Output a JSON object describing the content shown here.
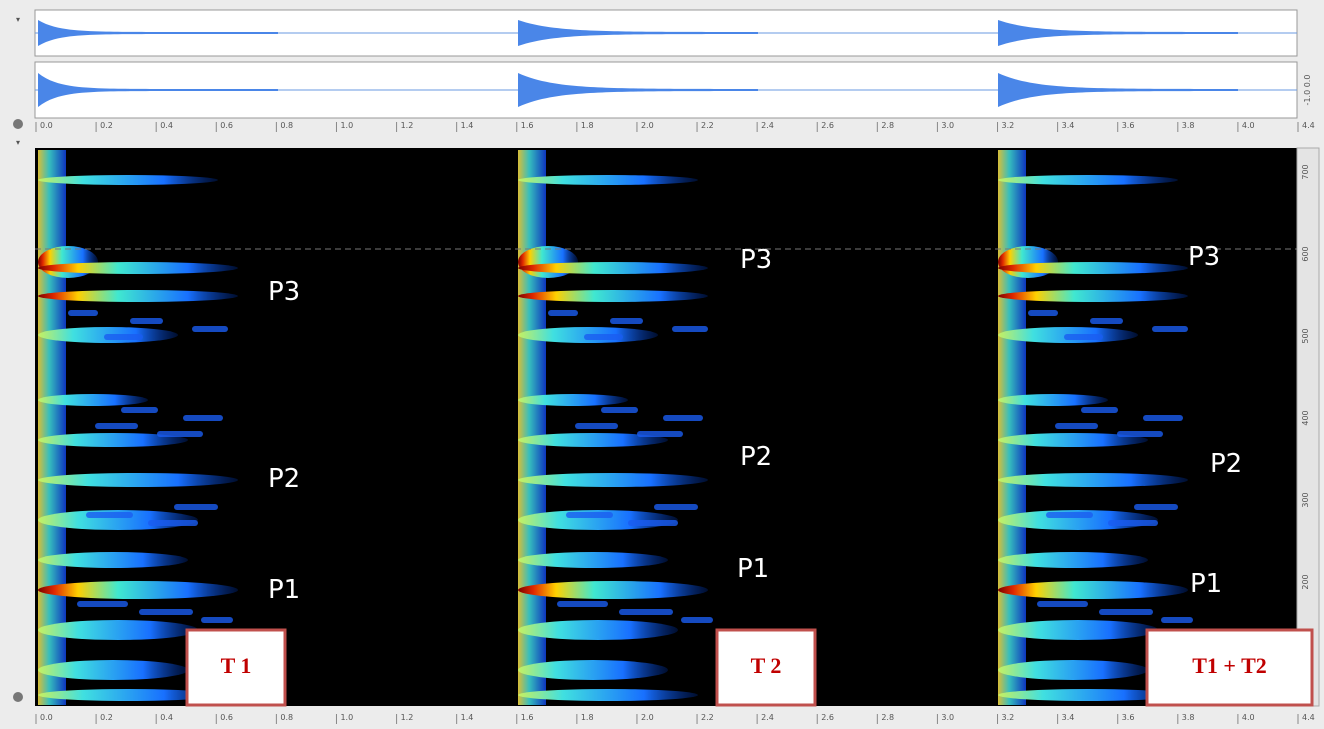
{
  "waveform_scale": "-1.0 0.0",
  "time_ruler": [
    "0.0",
    "0.2",
    "0.4",
    "0.6",
    "0.8",
    "1.0",
    "1.2",
    "1.4",
    "1.6",
    "1.8",
    "2.0",
    "2.2",
    "2.4",
    "2.6",
    "2.8",
    "3.0",
    "3.2",
    "3.4",
    "3.6",
    "3.8",
    "4.0",
    "4.4"
  ],
  "frequency_ruler": [
    "700",
    "600",
    "500",
    "400",
    "300",
    "200"
  ],
  "tracks": [
    {
      "name": "T 1",
      "peaks": [
        "P3",
        "P2",
        "P1"
      ]
    },
    {
      "name": "T 2",
      "peaks": [
        "P3",
        "P2",
        "P1"
      ]
    },
    {
      "name": "T1 + T2",
      "peaks": [
        "P3",
        "P2",
        "P1"
      ]
    }
  ]
}
